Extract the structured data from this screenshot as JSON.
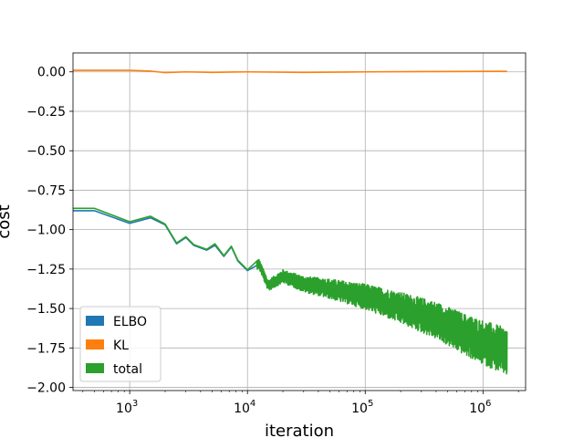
{
  "chart_data": {
    "type": "line",
    "title": "",
    "xlabel": "iteration",
    "ylabel": "cost",
    "xscale": "log",
    "xlim": [
      330,
      2300000
    ],
    "ylim": [
      -2.02,
      0.12
    ],
    "grid": true,
    "legend_position": "lower-left",
    "x_ticks": [
      {
        "value": 1000,
        "base": "10",
        "exp": "3"
      },
      {
        "value": 10000,
        "base": "10",
        "exp": "4"
      },
      {
        "value": 100000,
        "base": "10",
        "exp": "5"
      },
      {
        "value": 1000000,
        "base": "10",
        "exp": "6"
      }
    ],
    "y_ticks": [
      {
        "value": 0.0,
        "label": "0.00"
      },
      {
        "value": -0.25,
        "label": "−0.25"
      },
      {
        "value": -0.5,
        "label": "−0.50"
      },
      {
        "value": -0.75,
        "label": "−0.75"
      },
      {
        "value": -1.0,
        "label": "−1.00"
      },
      {
        "value": -1.25,
        "label": "−1.25"
      },
      {
        "value": -1.5,
        "label": "−1.50"
      },
      {
        "value": -1.75,
        "label": "−1.75"
      },
      {
        "value": -2.0,
        "label": "−2.00"
      }
    ],
    "series": [
      {
        "name": "ELBO",
        "color": "#1f77b4",
        "points": [
          [
            330,
            -0.88
          ],
          [
            500,
            -0.88
          ],
          [
            1000,
            -0.96
          ],
          [
            1500,
            -0.925
          ],
          [
            2000,
            -0.97
          ],
          [
            2500,
            -1.09
          ],
          [
            3000,
            -1.05
          ],
          [
            3500,
            -1.1
          ],
          [
            4500,
            -1.13
          ],
          [
            5300,
            -1.1
          ],
          [
            6300,
            -1.17
          ],
          [
            7300,
            -1.11
          ],
          [
            8300,
            -1.2
          ],
          [
            10000,
            -1.26
          ],
          [
            12500,
            -1.22
          ],
          [
            15000,
            -1.36
          ],
          [
            20000,
            -1.3
          ],
          [
            30000,
            -1.35
          ],
          [
            50000,
            -1.38
          ],
          [
            100000,
            -1.43
          ],
          [
            200000,
            -1.5
          ],
          [
            400000,
            -1.58
          ],
          [
            700000,
            -1.67
          ],
          [
            1000000,
            -1.72
          ],
          [
            1600000,
            -1.78
          ]
        ]
      },
      {
        "name": "KL",
        "color": "#ff7f0e",
        "points": [
          [
            330,
            0.01
          ],
          [
            1000,
            0.01
          ],
          [
            1500,
            0.005
          ],
          [
            2000,
            -0.005
          ],
          [
            3000,
            0.0
          ],
          [
            5000,
            -0.003
          ],
          [
            10000,
            0.0
          ],
          [
            30000,
            -0.003
          ],
          [
            100000,
            0.0
          ],
          [
            300000,
            0.002
          ],
          [
            1000000,
            0.003
          ],
          [
            1600000,
            0.003
          ]
        ]
      },
      {
        "name": "total",
        "color": "#2ca02c",
        "points": [
          [
            330,
            -0.865
          ],
          [
            500,
            -0.865
          ],
          [
            1000,
            -0.95
          ],
          [
            1500,
            -0.915
          ],
          [
            2000,
            -0.965
          ],
          [
            2500,
            -1.085
          ],
          [
            3000,
            -1.045
          ],
          [
            3500,
            -1.095
          ],
          [
            4500,
            -1.125
          ],
          [
            5300,
            -1.09
          ],
          [
            6300,
            -1.165
          ],
          [
            7300,
            -1.105
          ],
          [
            8300,
            -1.195
          ],
          [
            10000,
            -1.255
          ],
          [
            12500,
            -1.215
          ],
          [
            15000,
            -1.355
          ],
          [
            20000,
            -1.295
          ],
          [
            30000,
            -1.345
          ],
          [
            50000,
            -1.375
          ],
          [
            100000,
            -1.425
          ],
          [
            200000,
            -1.495
          ],
          [
            400000,
            -1.575
          ],
          [
            700000,
            -1.665
          ],
          [
            1000000,
            -1.715
          ],
          [
            1600000,
            -1.775
          ]
        ],
        "noise_band": [
          [
            12000,
            0.03
          ],
          [
            30000,
            0.05
          ],
          [
            100000,
            0.08
          ],
          [
            300000,
            0.11
          ],
          [
            1000000,
            0.14
          ],
          [
            1600000,
            0.15
          ]
        ]
      }
    ]
  }
}
